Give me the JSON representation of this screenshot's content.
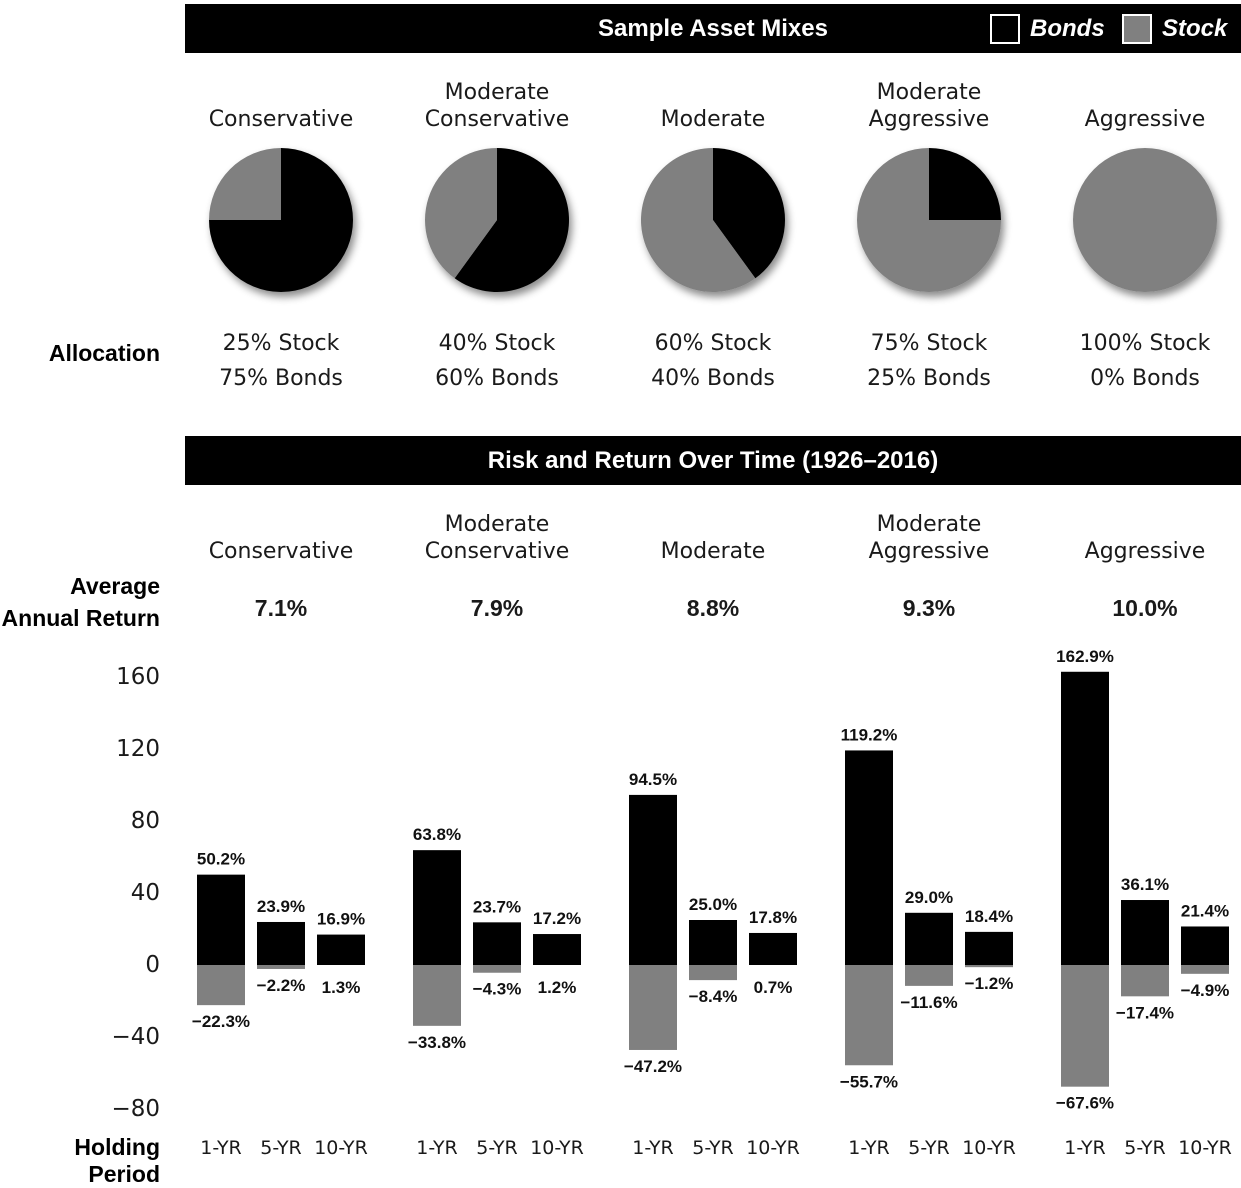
{
  "header": {
    "title": "Sample Asset Mixes"
  },
  "legend": {
    "bonds_label": "Bonds",
    "stock_label": "Stock",
    "bonds_color": "#000000",
    "stock_color": "#808080"
  },
  "mixes": [
    {
      "name_line1": "",
      "name_line2": "Conservative",
      "stock_label": "25% Stock",
      "bonds_label": "75% Bonds",
      "avg_return": "7.1%"
    },
    {
      "name_line1": "Moderate",
      "name_line2": "Conservative",
      "stock_label": "40% Stock",
      "bonds_label": "60% Bonds",
      "avg_return": "7.9%"
    },
    {
      "name_line1": "",
      "name_line2": "Moderate",
      "stock_label": "60% Stock",
      "bonds_label": "40% Bonds",
      "avg_return": "8.8%"
    },
    {
      "name_line1": "Moderate",
      "name_line2": "Aggressive",
      "stock_label": "75% Stock",
      "bonds_label": "25% Bonds",
      "avg_return": "9.3%"
    },
    {
      "name_line1": "",
      "name_line2": "Aggressive",
      "stock_label": "100% Stock",
      "bonds_label": "0% Bonds",
      "avg_return": "10.0%"
    }
  ],
  "labels": {
    "allocation": "Allocation",
    "avg_line1": "Average",
    "avg_line2": "Annual Return",
    "holding_period": "Holding Period"
  },
  "risk": {
    "title": "Risk and Return Over Time (1926–2016)"
  },
  "chart_data": [
    {
      "type": "pie",
      "title": "Sample Asset Mixes",
      "legend": [
        "Bonds",
        "Stock"
      ],
      "pies": [
        {
          "name": "Conservative",
          "stock": 25,
          "bonds": 75
        },
        {
          "name": "Moderate Conservative",
          "stock": 40,
          "bonds": 60
        },
        {
          "name": "Moderate",
          "stock": 60,
          "bonds": 40
        },
        {
          "name": "Moderate Aggressive",
          "stock": 75,
          "bonds": 25
        },
        {
          "name": "Aggressive",
          "stock": 100,
          "bonds": 0
        }
      ]
    },
    {
      "type": "bar",
      "title": "Risk and Return Over Time (1926–2016)",
      "xlabel": "Holding Period",
      "ylim": [
        -80,
        160
      ],
      "yticks": [
        160,
        120,
        80,
        40,
        0,
        -40,
        -80
      ],
      "ytick_labels": [
        "160",
        "120",
        "80",
        "40",
        "0",
        "−40",
        "−80"
      ],
      "periods": [
        "1-YR",
        "5-YR",
        "10-YR"
      ],
      "groups": [
        {
          "name": "Conservative",
          "best": [
            50.2,
            23.9,
            16.9
          ],
          "worst": [
            -22.3,
            -2.2,
            1.3
          ],
          "best_labels": [
            "50.2%",
            "23.9%",
            "16.9%"
          ],
          "worst_labels": [
            "−22.3%",
            "−2.2%",
            "1.3%"
          ]
        },
        {
          "name": "Moderate Conservative",
          "best": [
            63.8,
            23.7,
            17.2
          ],
          "worst": [
            -33.8,
            -4.3,
            1.2
          ],
          "best_labels": [
            "63.8%",
            "23.7%",
            "17.2%"
          ],
          "worst_labels": [
            "−33.8%",
            "−4.3%",
            "1.2%"
          ]
        },
        {
          "name": "Moderate",
          "best": [
            94.5,
            25.0,
            17.8
          ],
          "worst": [
            -47.2,
            -8.4,
            0.7
          ],
          "best_labels": [
            "94.5%",
            "25.0%",
            "17.8%"
          ],
          "worst_labels": [
            "−47.2%",
            "−8.4%",
            "0.7%"
          ]
        },
        {
          "name": "Moderate Aggressive",
          "best": [
            119.2,
            29.0,
            18.4
          ],
          "worst": [
            -55.7,
            -11.6,
            -1.2
          ],
          "best_labels": [
            "119.2%",
            "29.0%",
            "18.4%"
          ],
          "worst_labels": [
            "−55.7%",
            "−11.6%",
            "−1.2%"
          ]
        },
        {
          "name": "Aggressive",
          "best": [
            162.9,
            36.1,
            21.4
          ],
          "worst": [
            -67.6,
            -17.4,
            -4.9
          ],
          "best_labels": [
            "162.9%",
            "36.1%",
            "21.4%"
          ],
          "worst_labels": [
            "−67.6%",
            "−17.4%",
            "−4.9%"
          ]
        }
      ]
    }
  ]
}
